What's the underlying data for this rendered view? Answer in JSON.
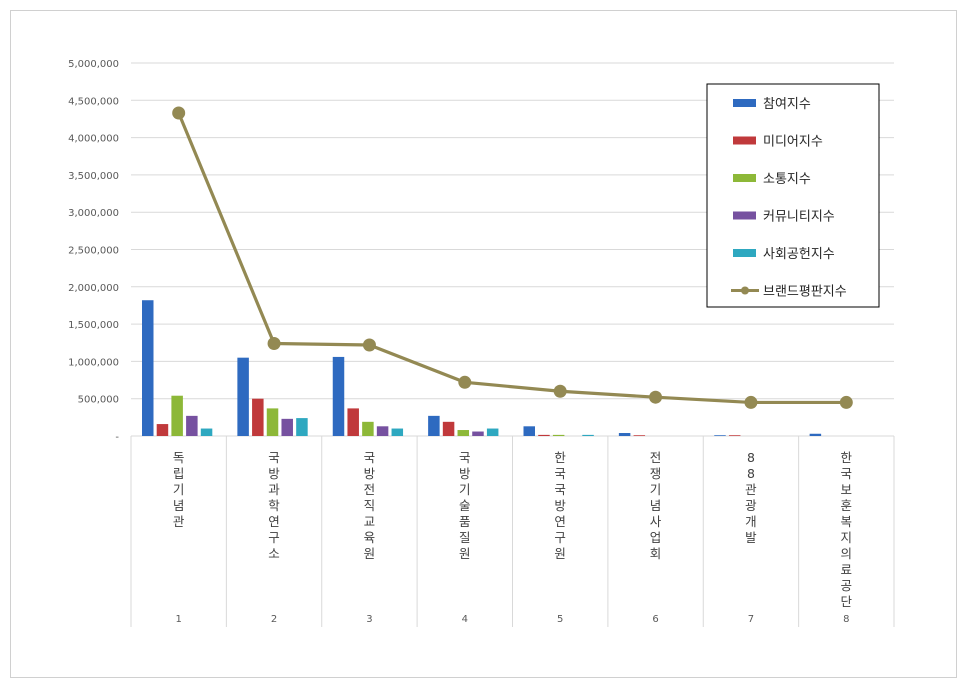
{
  "chart_data": {
    "type": "bar",
    "categories": [
      "독립기념관",
      "국방과학연구소",
      "국방전직교육원",
      "국방기술품질원",
      "한국국방연구원",
      "전쟁기념사업회",
      "88관광개발",
      "한국보훈복지의료공단"
    ],
    "ranks": [
      "1",
      "2",
      "3",
      "4",
      "5",
      "6",
      "7",
      "8"
    ],
    "ylim": [
      0,
      5000000
    ],
    "yticks": [
      0,
      500000,
      1000000,
      1500000,
      2000000,
      2500000,
      3000000,
      3500000,
      4000000,
      4500000,
      5000000
    ],
    "ytick_labels": [
      "-",
      "500,000",
      "1,000,000",
      "1,500,000",
      "2,000,000",
      "2,500,000",
      "3,000,000",
      "3,500,000",
      "4,000,000",
      "4,500,000",
      "5,000,000"
    ],
    "grid": true,
    "legend_position": "top-right",
    "series": [
      {
        "name": "참여지수",
        "kind": "bar",
        "color": "#2E6AC0",
        "values": [
          1820000,
          1050000,
          1060000,
          270000,
          130000,
          40000,
          10000,
          30000
        ]
      },
      {
        "name": "미디어지수",
        "kind": "bar",
        "color": "#C0393B",
        "values": [
          160000,
          500000,
          370000,
          190000,
          15000,
          10000,
          10000,
          0
        ]
      },
      {
        "name": "소통지수",
        "kind": "bar",
        "color": "#8DB838",
        "values": [
          540000,
          370000,
          190000,
          80000,
          15000,
          0,
          0,
          0
        ]
      },
      {
        "name": "커뮤니티지수",
        "kind": "bar",
        "color": "#7651A0",
        "values": [
          270000,
          230000,
          130000,
          60000,
          0,
          0,
          0,
          0
        ]
      },
      {
        "name": "사회공헌지수",
        "kind": "bar",
        "color": "#2EA8C0",
        "values": [
          100000,
          240000,
          100000,
          100000,
          15000,
          0,
          0,
          0
        ]
      },
      {
        "name": "브랜드평판지수",
        "kind": "line",
        "color": "#938953",
        "values": [
          4330000,
          1240000,
          1220000,
          720000,
          600000,
          520000,
          450000,
          450000
        ]
      }
    ]
  }
}
